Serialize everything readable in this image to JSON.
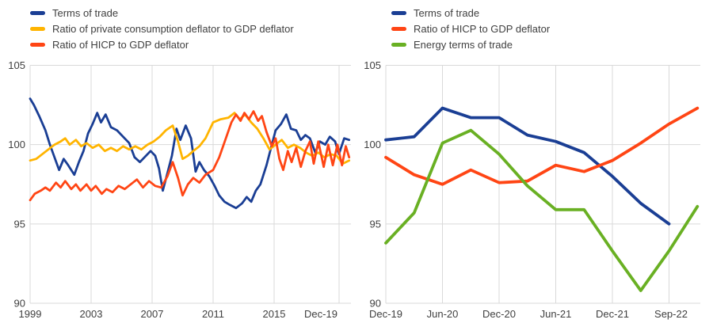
{
  "page": {
    "background": "#ffffff"
  },
  "colors": {
    "blue": "#1a3e94",
    "amber": "#ffb400",
    "red": "#ff4514",
    "green": "#69b023",
    "grid": "#d9d9d9",
    "text": "#3f3f3f"
  },
  "chart_data": [
    {
      "type": "line",
      "title": "",
      "x_unit": "year",
      "x_tick_labels": [
        "1999",
        "2003",
        "2007",
        "2011",
        "2015",
        "Dec-19"
      ],
      "y_ticks": [
        90,
        95,
        100,
        105
      ],
      "ylim": [
        90,
        105
      ],
      "xlim": [
        1999,
        2020
      ],
      "grid": true,
      "legend_position": "top-left",
      "series": [
        {
          "name": "Terms of trade",
          "color": "#1a3e94",
          "x": [
            1999.0,
            1999.25,
            1999.6,
            2000.0,
            2000.3,
            2000.6,
            2000.9,
            2001.2,
            2001.5,
            2001.9,
            2002.2,
            2002.5,
            2002.8,
            2003.1,
            2003.4,
            2003.65,
            2003.95,
            2004.3,
            2004.7,
            2005.1,
            2005.5,
            2005.85,
            2006.2,
            2006.6,
            2006.9,
            2007.2,
            2007.45,
            2007.7,
            2008.0,
            2008.3,
            2008.6,
            2008.85,
            2009.2,
            2009.55,
            2009.85,
            2010.1,
            2010.4,
            2010.75,
            2011.1,
            2011.4,
            2011.75,
            2012.1,
            2012.5,
            2012.9,
            2013.2,
            2013.5,
            2013.8,
            2014.1,
            2014.5,
            2014.8,
            2015.1,
            2015.45,
            2015.8,
            2016.1,
            2016.45,
            2016.75,
            2017.05,
            2017.35,
            2017.7,
            2018.0,
            2018.35,
            2018.65,
            2019.0,
            2019.25,
            2019.6,
            2019.92
          ],
          "values": [
            102.9,
            102.5,
            101.8,
            100.9,
            100.0,
            99.2,
            98.4,
            99.1,
            98.7,
            98.1,
            98.9,
            99.6,
            100.7,
            101.3,
            102.0,
            101.4,
            101.9,
            101.1,
            100.9,
            100.5,
            100.1,
            99.2,
            98.9,
            99.3,
            99.6,
            99.3,
            98.5,
            97.1,
            98.2,
            99.3,
            101.0,
            100.3,
            101.2,
            100.4,
            98.3,
            98.9,
            98.4,
            98.0,
            97.4,
            96.8,
            96.4,
            96.2,
            96.0,
            96.3,
            96.7,
            96.4,
            97.1,
            97.5,
            98.7,
            99.8,
            100.9,
            101.3,
            101.9,
            101.0,
            100.9,
            100.3,
            100.6,
            100.4,
            99.5,
            100.2,
            100.0,
            100.5,
            100.2,
            99.4,
            100.4,
            100.3
          ]
        },
        {
          "name": "Ratio of private consumption deflator to GDP deflator",
          "color": "#ffb400",
          "x": [
            1999.0,
            1999.4,
            1999.8,
            2000.2,
            2000.6,
            2001.0,
            2001.3,
            2001.6,
            2002.0,
            2002.35,
            2002.7,
            2003.1,
            2003.5,
            2003.9,
            2004.3,
            2004.7,
            2005.1,
            2005.5,
            2005.9,
            2006.3,
            2006.7,
            2007.1,
            2007.5,
            2007.9,
            2008.35,
            2008.7,
            2009.0,
            2009.35,
            2009.7,
            2010.1,
            2010.5,
            2011.0,
            2011.5,
            2012.0,
            2012.4,
            2012.75,
            2013.1,
            2013.5,
            2013.9,
            2014.3,
            2014.7,
            2015.1,
            2015.5,
            2015.9,
            2016.3,
            2016.7,
            2017.1,
            2017.5,
            2017.9,
            2018.3,
            2018.7,
            2019.1,
            2019.5,
            2019.92
          ],
          "values": [
            99.0,
            99.1,
            99.4,
            99.7,
            100.0,
            100.2,
            100.4,
            100.0,
            100.3,
            99.9,
            100.1,
            99.8,
            100.0,
            99.6,
            99.8,
            99.6,
            99.9,
            99.7,
            99.9,
            99.7,
            100.0,
            100.2,
            100.5,
            100.9,
            101.2,
            100.2,
            99.1,
            99.3,
            99.6,
            99.9,
            100.4,
            101.4,
            101.6,
            101.7,
            102.0,
            101.6,
            101.9,
            101.4,
            101.0,
            100.4,
            99.7,
            100.0,
            100.3,
            99.8,
            100.0,
            99.8,
            99.5,
            99.3,
            99.5,
            99.2,
            99.4,
            99.3,
            98.8,
            99.0
          ]
        },
        {
          "name": "Ratio of HICP to GDP deflator",
          "color": "#ff4514",
          "x": [
            1999.0,
            1999.3,
            1999.7,
            2000.0,
            2000.3,
            2000.7,
            2001.0,
            2001.3,
            2001.7,
            2002.0,
            2002.3,
            2002.7,
            2003.0,
            2003.3,
            2003.7,
            2004.0,
            2004.4,
            2004.8,
            2005.2,
            2005.6,
            2006.0,
            2006.4,
            2006.8,
            2007.2,
            2007.6,
            2008.0,
            2008.35,
            2008.7,
            2009.0,
            2009.35,
            2009.7,
            2010.1,
            2010.5,
            2011.0,
            2011.4,
            2011.8,
            2012.2,
            2012.5,
            2012.8,
            2013.05,
            2013.35,
            2013.65,
            2013.95,
            2014.2,
            2014.5,
            2014.85,
            2015.1,
            2015.35,
            2015.6,
            2015.9,
            2016.15,
            2016.45,
            2016.75,
            2017.05,
            2017.35,
            2017.6,
            2017.9,
            2018.25,
            2018.55,
            2018.85,
            2019.15,
            2019.45,
            2019.7,
            2019.92
          ],
          "values": [
            96.5,
            96.9,
            97.1,
            97.3,
            97.1,
            97.6,
            97.3,
            97.7,
            97.2,
            97.5,
            97.1,
            97.5,
            97.1,
            97.4,
            96.9,
            97.2,
            97.0,
            97.4,
            97.2,
            97.5,
            97.8,
            97.3,
            97.7,
            97.4,
            97.3,
            98.0,
            98.9,
            97.9,
            96.8,
            97.5,
            97.9,
            97.6,
            98.1,
            98.4,
            99.2,
            100.3,
            101.4,
            101.9,
            101.5,
            102.0,
            101.6,
            102.1,
            101.5,
            101.8,
            100.8,
            99.9,
            100.4,
            99.1,
            98.4,
            99.6,
            98.9,
            99.8,
            98.6,
            99.6,
            100.2,
            98.8,
            100.2,
            98.6,
            100.0,
            98.7,
            100.0,
            98.7,
            99.9,
            99.2
          ]
        }
      ]
    },
    {
      "type": "line",
      "title": "",
      "categories": [
        "Dec-19",
        "Mar-20",
        "Jun-20",
        "Sep-20",
        "Dec-20",
        "Mar-21",
        "Jun-21",
        "Sep-21",
        "Dec-21",
        "Mar-22",
        "Jun-22",
        "Sep-22"
      ],
      "x_tick_labels": [
        "Dec-19",
        "Jun-20",
        "Dec-20",
        "Jun-21",
        "Dec-21",
        "Sep-22"
      ],
      "y_ticks": [
        90,
        95,
        100,
        105
      ],
      "ylim": [
        90,
        105
      ],
      "grid": true,
      "legend_position": "top-left",
      "series": [
        {
          "name": "Terms of trade",
          "color": "#1a3e94",
          "values": [
            100.3,
            100.5,
            102.3,
            101.7,
            101.7,
            100.6,
            100.2,
            99.5,
            98.0,
            96.3,
            95.0
          ]
        },
        {
          "name": "Ratio of HICP to GDP deflator",
          "color": "#ff4514",
          "values": [
            99.2,
            98.1,
            97.5,
            98.4,
            97.6,
            97.7,
            98.7,
            98.3,
            99.0,
            100.1,
            101.3,
            102.3
          ]
        },
        {
          "name": "Energy terms of trade",
          "color": "#69b023",
          "values": [
            93.8,
            95.7,
            100.1,
            100.9,
            99.4,
            97.4,
            95.9,
            95.9,
            93.3,
            90.8,
            93.3,
            96.1
          ]
        }
      ]
    }
  ]
}
